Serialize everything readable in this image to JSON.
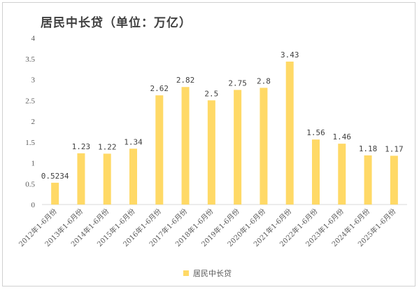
{
  "colors": {
    "bar": "#FFD966",
    "axis": "#d9d9d9",
    "text": "#595959"
  },
  "chart_data": {
    "type": "bar",
    "title": "居民中长贷（单位：万亿）",
    "categories": [
      "2012年1-6月份",
      "2013年1-6月份",
      "2014年1-6月份",
      "2015年1-6月份",
      "2016年1-6月份",
      "2017年1-6月份",
      "2018年1-6月份",
      "2019年1-6月份",
      "2020年1-6月份",
      "2021年1-6月份",
      "2022年1-6月份",
      "2023年1-6月份",
      "2024年1-6月份",
      "2025年1-6月份"
    ],
    "series": [
      {
        "name": "居民中长贷",
        "values": [
          0.5234,
          1.23,
          1.22,
          1.34,
          2.62,
          2.82,
          2.5,
          2.75,
          2.8,
          3.43,
          1.56,
          1.46,
          1.18,
          1.17
        ],
        "labels": [
          "0.5234",
          "1.23",
          "1.22",
          "1.34",
          "2.62",
          "2.82",
          "2.5",
          "2.75",
          "2.8",
          "3.43",
          "1.56",
          "1.46",
          "1.18",
          "1.17"
        ]
      }
    ],
    "yticks": [
      "0",
      "0.5",
      "1",
      "1.5",
      "2",
      "2.5",
      "3",
      "3.5",
      "4"
    ],
    "ylim": [
      0,
      4
    ],
    "grid": false,
    "legend": "bottom-center"
  }
}
